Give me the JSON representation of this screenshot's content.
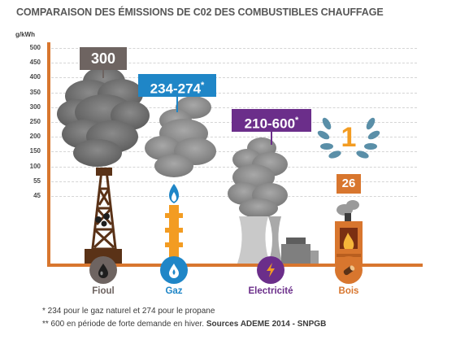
{
  "chart_data": {
    "type": "bar",
    "title": "COMPARAISON DES ÉMISSIONS DE C02 DES COMBUSTIBLES CHAUFFAGE",
    "ylabel": "g/kWh",
    "yticks": [
      "500",
      "450",
      "400",
      "350",
      "300",
      "250",
      "200",
      "150",
      "100",
      "55",
      "45"
    ],
    "categories": [
      "Fioul",
      "Gaz",
      "Electricité",
      "Bois"
    ],
    "labels": [
      "300",
      "234-274*",
      "210-600*",
      "26"
    ],
    "values": [
      300,
      254,
      405,
      26
    ],
    "ranges": [
      [
        300,
        300
      ],
      [
        234,
        274
      ],
      [
        210,
        600
      ],
      [
        26,
        26
      ]
    ],
    "colors": [
      "#6e6461",
      "#1f86c7",
      "#6b2e8a",
      "#d8762e"
    ],
    "rank_badge": "1",
    "footnotes": [
      "* 234 pour le gaz naturel et 274 pour le propane",
      "** 600 en période de forte demande en hiver."
    ],
    "source": "Sources ADEME 2014 - SNPGB"
  }
}
